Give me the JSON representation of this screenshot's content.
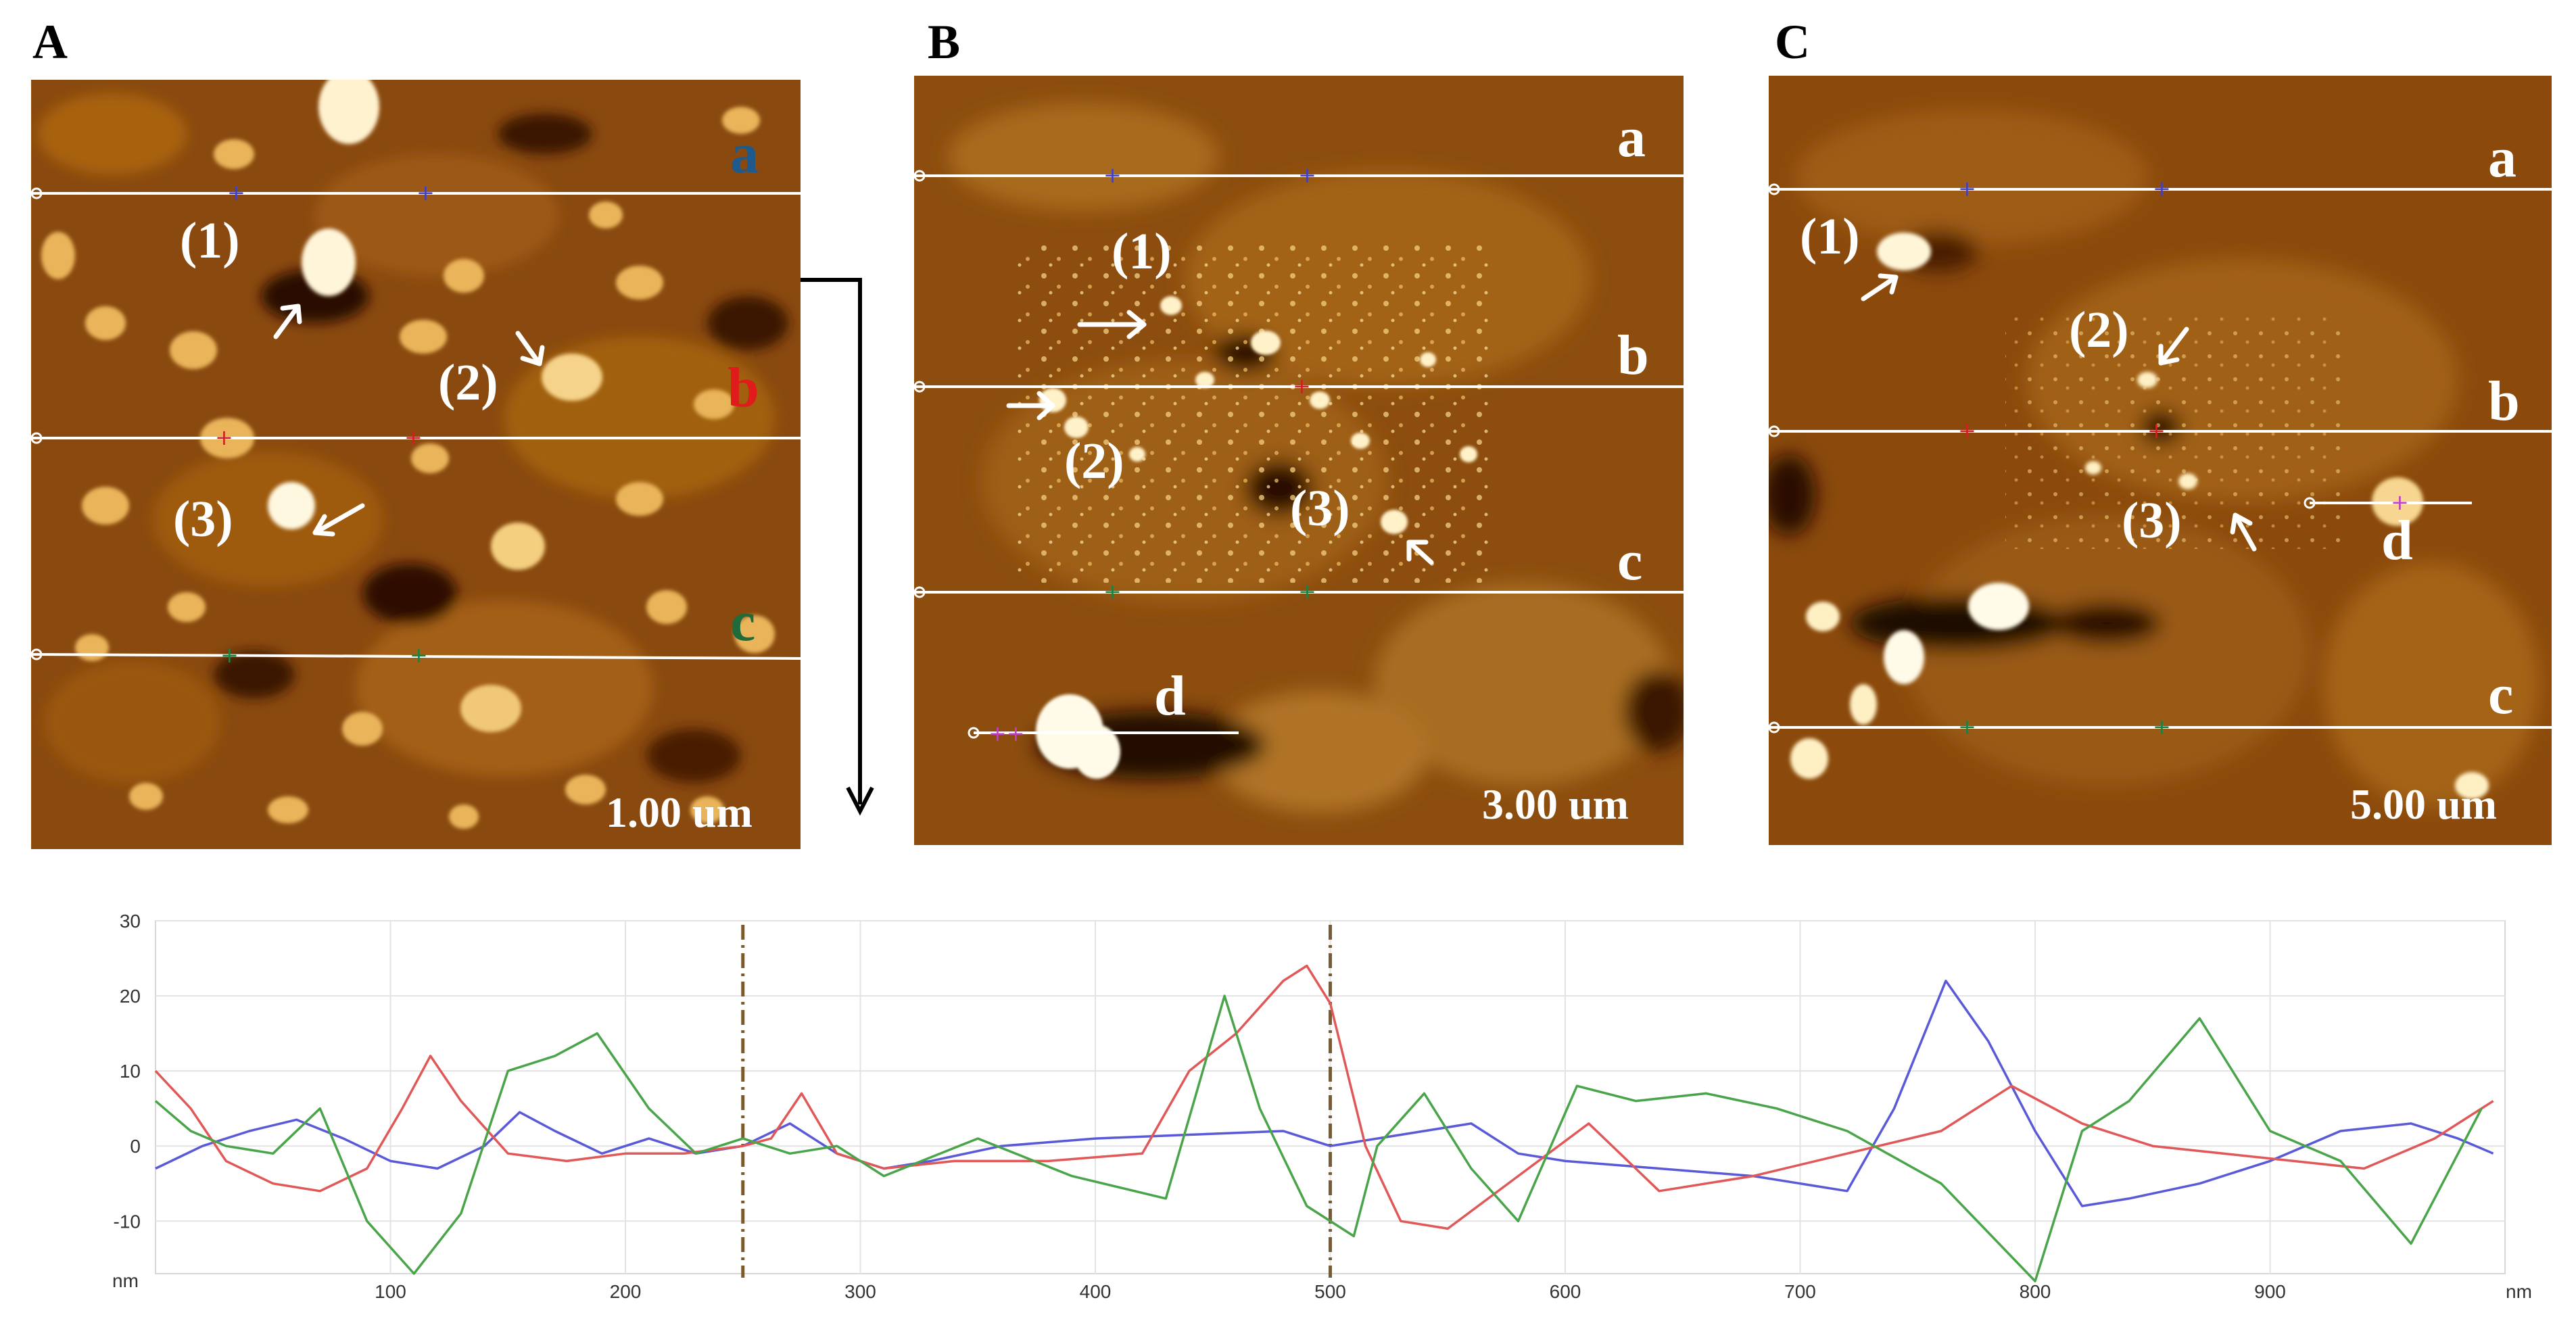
{
  "panels": [
    {
      "letter": "A",
      "scale": "1.00 um",
      "line_labels": [
        {
          "text": "a",
          "color": "#1f5a8c"
        },
        {
          "text": "b",
          "color": "#e01b1b"
        },
        {
          "text": "c",
          "color": "#1f6b3a"
        }
      ],
      "numbers": [
        "(1)",
        "(2)",
        "(3)"
      ]
    },
    {
      "letter": "B",
      "scale": "3.00 um",
      "line_labels": [
        {
          "text": "a",
          "color": "#ffffff"
        },
        {
          "text": "b",
          "color": "#ffffff"
        },
        {
          "text": "c",
          "color": "#ffffff"
        },
        {
          "text": "d",
          "color": "#ffffff"
        }
      ],
      "numbers": [
        "(1)",
        "(2)",
        "(3)"
      ]
    },
    {
      "letter": "C",
      "scale": "5.00 um",
      "line_labels": [
        {
          "text": "a",
          "color": "#ffffff"
        },
        {
          "text": "b",
          "color": "#ffffff"
        },
        {
          "text": "d",
          "color": "#ffffff"
        },
        {
          "text": "c",
          "color": "#ffffff"
        }
      ],
      "numbers": [
        "(1)",
        "(2)",
        "(3)"
      ]
    }
  ],
  "chart_data": {
    "type": "line",
    "title": "",
    "xlabel": "nm",
    "ylabel": "nm",
    "xlim": [
      0,
      1000
    ],
    "ylim": [
      -17,
      30
    ],
    "xticks": [
      100,
      200,
      300,
      400,
      500,
      600,
      700,
      800,
      900
    ],
    "yticks": [
      30,
      20,
      10,
      0,
      -10
    ],
    "grid": true,
    "markers_x": [
      250,
      500
    ],
    "series": [
      {
        "name": "a",
        "color": "#5a5ad8",
        "x": [
          0,
          20,
          40,
          60,
          80,
          100,
          120,
          140,
          155,
          170,
          190,
          210,
          230,
          250,
          270,
          290,
          310,
          330,
          360,
          400,
          440,
          480,
          500,
          520,
          540,
          560,
          580,
          600,
          640,
          680,
          700,
          720,
          740,
          762,
          780,
          800,
          820,
          840,
          870,
          900,
          930,
          960,
          980,
          995
        ],
        "values": [
          -3,
          0,
          2,
          3.5,
          1,
          -2,
          -3,
          0,
          4.5,
          2,
          -1,
          1,
          -1,
          0,
          3,
          -1,
          -3,
          -2,
          0,
          1,
          1.5,
          2,
          0,
          1,
          2,
          3,
          -1,
          -2,
          -3,
          -4,
          -5,
          -6,
          5,
          22,
          14,
          2,
          -8,
          -7,
          -5,
          -2,
          2,
          3,
          1,
          -1
        ]
      },
      {
        "name": "b",
        "color": "#e05858",
        "x": [
          0,
          15,
          30,
          50,
          70,
          90,
          105,
          117,
          130,
          150,
          175,
          200,
          225,
          250,
          262,
          275,
          290,
          310,
          340,
          380,
          420,
          440,
          460,
          480,
          490,
          500,
          515,
          530,
          550,
          580,
          610,
          640,
          680,
          720,
          760,
          790,
          820,
          850,
          880,
          910,
          940,
          970,
          995
        ],
        "values": [
          10,
          5,
          -2,
          -5,
          -6,
          -3,
          5,
          12,
          6,
          -1,
          -2,
          -1,
          -1,
          0,
          1,
          7,
          -1,
          -3,
          -2,
          -2,
          -1,
          10,
          15,
          22,
          24,
          19,
          0,
          -10,
          -11,
          -4,
          3,
          -6,
          -4,
          -1,
          2,
          8,
          3,
          0,
          -1,
          -2,
          -3,
          1,
          6
        ]
      },
      {
        "name": "c",
        "color": "#4aa44a",
        "x": [
          0,
          15,
          30,
          50,
          70,
          90,
          110,
          130,
          150,
          170,
          188,
          210,
          230,
          250,
          270,
          290,
          310,
          350,
          390,
          430,
          455,
          470,
          490,
          510,
          520,
          540,
          560,
          580,
          605,
          630,
          660,
          690,
          720,
          760,
          800,
          820,
          840,
          870,
          900,
          930,
          960,
          990
        ],
        "values": [
          6,
          2,
          0,
          -1,
          5,
          -10,
          -17,
          -9,
          10,
          12,
          15,
          5,
          -1,
          1,
          -1,
          0,
          -4,
          1,
          -4,
          -7,
          20,
          5,
          -8,
          -12,
          0,
          7,
          -3,
          -10,
          8,
          6,
          7,
          5,
          2,
          -5,
          -18,
          2,
          6,
          17,
          2,
          -2,
          -13,
          5
        ]
      }
    ]
  }
}
